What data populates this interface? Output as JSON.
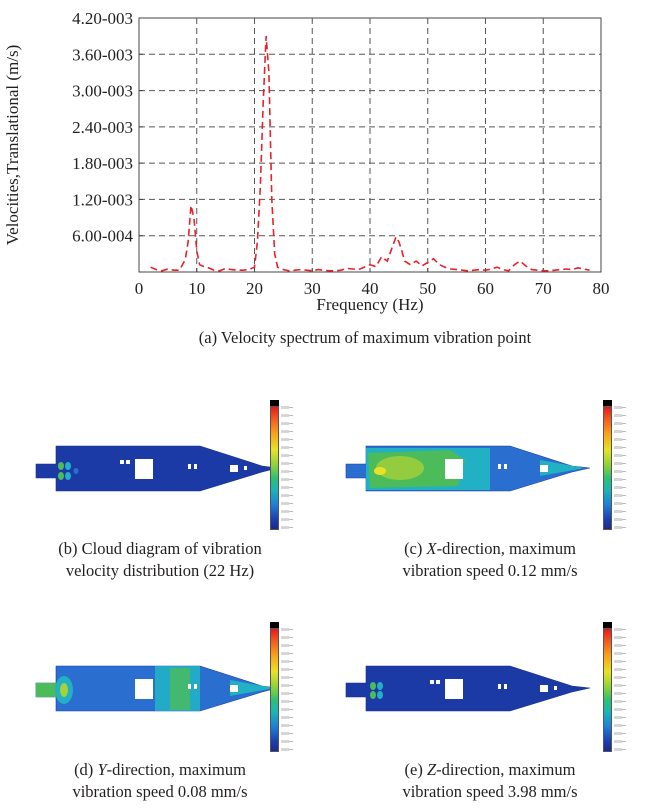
{
  "chart_data": {
    "type": "line",
    "title": "",
    "xlabel": "Frequency (Hz)",
    "ylabel": "Velocities,Translational (m/s)",
    "xlim": [
      0,
      80
    ],
    "ylim": [
      0,
      0.0042
    ],
    "x_ticks": [
      "0",
      "10",
      "20",
      "30",
      "40",
      "50",
      "60",
      "70",
      "80"
    ],
    "y_ticks": [
      "6.00-004",
      "1.20-003",
      "1.80-003",
      "2.40-003",
      "3.00-003",
      "3.60-003",
      "4.20-003"
    ],
    "y_tick_values": [
      0.0006,
      0.0012,
      0.0018,
      0.0024,
      0.003,
      0.0036,
      0.0042
    ],
    "grid": true,
    "line_color": "#e8212a",
    "line_style": "dashed",
    "series": [
      {
        "x": [
          2,
          3,
          4,
          5,
          6,
          7,
          8,
          8.5,
          9,
          9.5,
          10,
          10.5,
          11,
          12,
          13,
          14,
          15,
          16,
          17,
          18,
          19,
          20,
          20.5,
          21,
          21.5,
          22,
          22.5,
          23,
          23.5,
          24,
          25,
          26,
          27,
          28,
          29,
          30,
          31,
          32,
          33,
          34,
          35,
          36,
          37,
          38,
          39,
          40,
          41,
          42,
          43,
          44,
          44.5,
          45,
          45.5,
          46,
          47,
          48,
          49,
          50,
          51,
          52,
          53,
          54,
          55,
          56,
          57,
          58,
          59,
          60,
          61,
          62,
          63,
          64,
          65,
          66,
          67,
          68,
          69,
          70,
          71,
          72,
          73,
          74,
          75,
          76,
          77,
          78
        ],
        "y": [
          8e-05,
          4e-05,
          2e-05,
          5e-05,
          3e-05,
          3e-05,
          0.0002,
          0.0005,
          0.0011,
          0.0009,
          0.00035,
          0.00012,
          0.0001,
          7e-05,
          3e-05,
          2e-05,
          6e-05,
          4e-05,
          3e-05,
          3e-05,
          4e-05,
          8e-05,
          0.0005,
          0.0014,
          0.0028,
          0.0039,
          0.0033,
          0.0012,
          0.0003,
          8e-05,
          4e-05,
          2e-05,
          3e-05,
          4e-05,
          3e-05,
          2e-05,
          4e-05,
          3e-05,
          2e-05,
          2e-05,
          3e-05,
          6e-05,
          5e-05,
          4e-05,
          8e-05,
          0.00012,
          9e-05,
          0.00025,
          0.00018,
          0.00045,
          0.00058,
          0.0005,
          0.00035,
          0.00018,
          0.00012,
          0.00018,
          0.0001,
          0.00016,
          0.00022,
          0.00012,
          8e-05,
          5e-05,
          4e-05,
          3e-05,
          2e-05,
          3e-05,
          4e-05,
          3e-05,
          5e-05,
          8e-05,
          4e-05,
          2e-05,
          0.00012,
          0.00018,
          0.0001,
          4e-05,
          3e-05,
          2e-05,
          2e-05,
          3e-05,
          4e-05,
          5e-05,
          4e-05,
          7e-05,
          5e-05,
          3e-05
        ]
      }
    ]
  },
  "captions": {
    "a": "(a) Velocity spectrum of maximum vibration point",
    "b_line1": "(b) Cloud diagram of vibration",
    "b_line2": "velocity distribution (22 Hz)",
    "c_prefix": "(c) ",
    "c_italic": "X",
    "c_rest": "-direction, maximum",
    "c_line2": "vibration speed 0.12 mm/s",
    "d_prefix": "(d) ",
    "d_italic": "Y",
    "d_rest": "-direction, maximum",
    "d_line2": "vibration speed 0.08 mm/s",
    "e_prefix": "(e) ",
    "e_italic": "Z",
    "e_rest": "-direction, maximum",
    "e_line2": "vibration speed 3.98 mm/s"
  },
  "colors": {
    "hull_blue": "#1c3aa6",
    "hull_light_blue": "#2a6fd0",
    "hull_cyan": "#21b0c4",
    "hull_green": "#4cbb5a",
    "hull_yellowgreen": "#a6d13a"
  }
}
